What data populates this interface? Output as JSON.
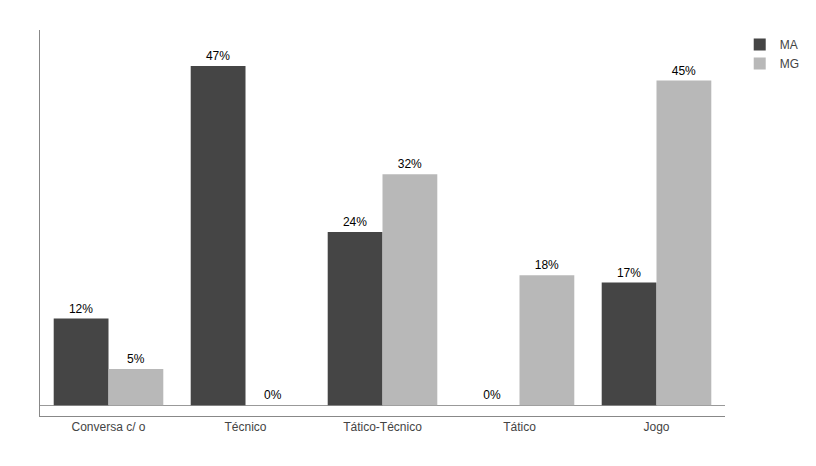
{
  "chart_data": {
    "type": "bar",
    "categories": [
      "Conversa c/ o",
      "Técnico",
      "Tático-Técnico",
      "Tático",
      "Jogo"
    ],
    "series": [
      {
        "name": "MA",
        "color": "#454545",
        "values": [
          12,
          47,
          24,
          0,
          17
        ],
        "value_labels": [
          "12%",
          "47%",
          "24%",
          "0%",
          "17%"
        ]
      },
      {
        "name": "MG",
        "color": "#b8b8b8",
        "values": [
          5,
          0,
          32,
          18,
          45
        ],
        "value_labels": [
          "5%",
          "0%",
          "32%",
          "18%",
          "45%"
        ]
      }
    ],
    "ylim": [
      -1.5,
      52
    ],
    "tick_labels": "x",
    "data_labels": true,
    "legend": "upper right",
    "grid": false
  }
}
